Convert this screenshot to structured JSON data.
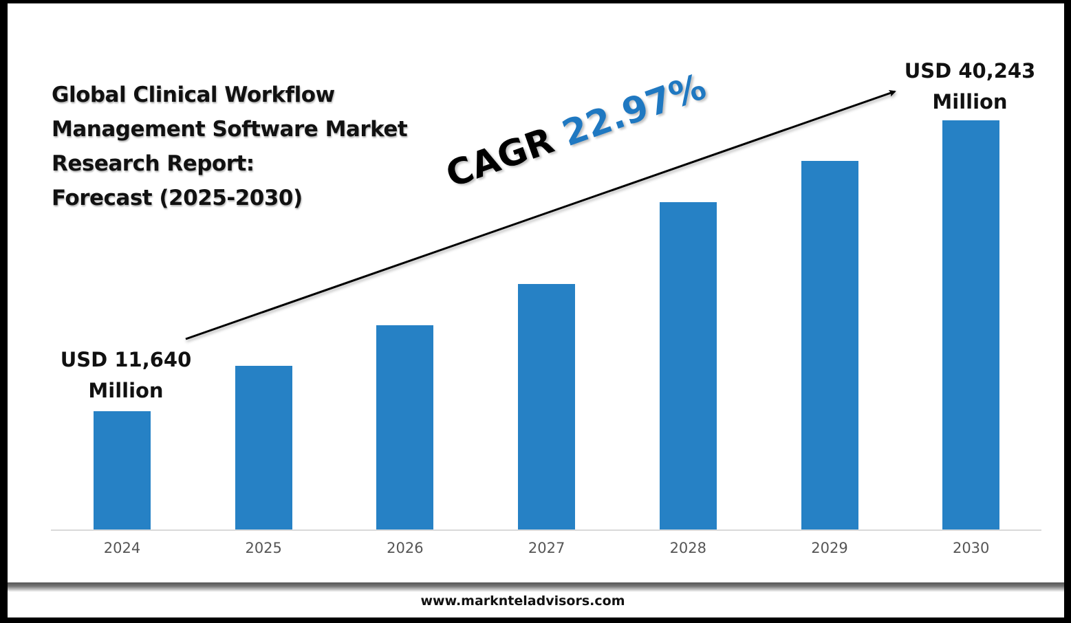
{
  "title_lines": [
    "Global Clinical Workflow",
    "Management Software Market",
    "Research Report:",
    "Forecast (2025-2030)"
  ],
  "cagr": {
    "label": "CAGR",
    "value": "22.97%"
  },
  "annotations": {
    "start": {
      "line1": "USD 11,640",
      "line2": "Million"
    },
    "end": {
      "line1": "USD 40,243",
      "line2": "Million"
    }
  },
  "footer": {
    "website": "www.marknteladvisors.com"
  },
  "colors": {
    "bar": "#2681c5",
    "cagr_value": "#1f78c1",
    "axis": "#d9d9d9"
  },
  "chart_data": {
    "type": "bar",
    "title": "Global Clinical Workflow Management Software Market Research Report: Forecast (2025-2030)",
    "categories": [
      "2024",
      "2025",
      "2026",
      "2027",
      "2028",
      "2029",
      "2030"
    ],
    "values": [
      11640,
      16100,
      20100,
      24150,
      32200,
      36250,
      40243
    ],
    "units": "USD Million",
    "labeled_values": {
      "2024": "USD 11,640 Million",
      "2030": "USD 40,243 Million"
    },
    "annotation": "CAGR 22.97%",
    "xlabel": "",
    "ylabel": "",
    "grid": false,
    "legend": null
  }
}
